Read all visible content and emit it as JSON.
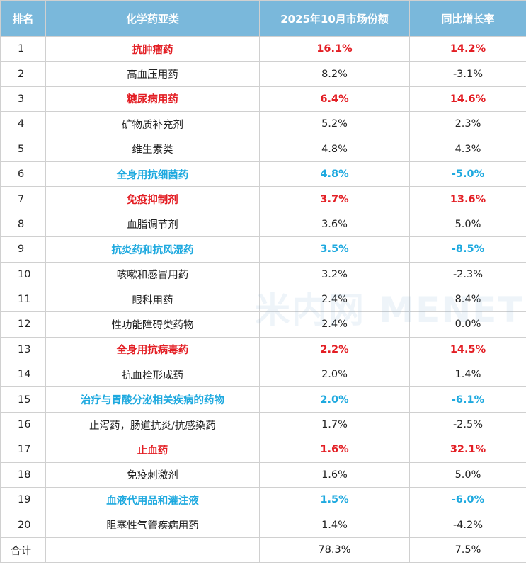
{
  "headers": [
    "排名",
    "化学药亚类",
    "2025年10月市场份额",
    "同比增长率"
  ],
  "rows": [
    {
      "rank": "1",
      "name": "抗肿瘤药",
      "share": "16.1%",
      "growth": "14.2%",
      "highlight": "red"
    },
    {
      "rank": "2",
      "name": "高血压用药",
      "share": "8.2%",
      "growth": "-3.1%",
      "highlight": "none"
    },
    {
      "rank": "3",
      "name": "糖尿病用药",
      "share": "6.4%",
      "growth": "14.6%",
      "highlight": "red"
    },
    {
      "rank": "4",
      "name": "矿物质补充剂",
      "share": "5.2%",
      "growth": "2.3%",
      "highlight": "none"
    },
    {
      "rank": "5",
      "name": "维生素类",
      "share": "4.8%",
      "growth": "4.3%",
      "highlight": "none"
    },
    {
      "rank": "6",
      "name": "全身用抗细菌药",
      "share": "4.8%",
      "growth": "-5.0%",
      "highlight": "blue"
    },
    {
      "rank": "7",
      "name": "免疫抑制剂",
      "share": "3.7%",
      "growth": "13.6%",
      "highlight": "red"
    },
    {
      "rank": "8",
      "name": "血脂调节剂",
      "share": "3.6%",
      "growth": "5.0%",
      "highlight": "none"
    },
    {
      "rank": "9",
      "name": "抗炎药和抗风湿药",
      "share": "3.5%",
      "growth": "-8.5%",
      "highlight": "blue"
    },
    {
      "rank": "10",
      "name": "咳嗽和感冒用药",
      "share": "3.2%",
      "growth": "-2.3%",
      "highlight": "none"
    },
    {
      "rank": "11",
      "name": "眼科用药",
      "share": "2.4%",
      "growth": "8.4%",
      "highlight": "none"
    },
    {
      "rank": "12",
      "name": "性功能障碍类药物",
      "share": "2.4%",
      "growth": "0.0%",
      "highlight": "none"
    },
    {
      "rank": "13",
      "name": "全身用抗病毒药",
      "share": "2.2%",
      "growth": "14.5%",
      "highlight": "red"
    },
    {
      "rank": "14",
      "name": "抗血栓形成药",
      "share": "2.0%",
      "growth": "1.4%",
      "highlight": "none"
    },
    {
      "rank": "15",
      "name": "治疗与胃酸分泌相关疾病的药物",
      "share": "2.0%",
      "growth": "-6.1%",
      "highlight": "blue"
    },
    {
      "rank": "16",
      "name": "止泻药，肠道抗炎/抗感染药",
      "share": "1.7%",
      "growth": "-2.5%",
      "highlight": "none"
    },
    {
      "rank": "17",
      "name": "止血药",
      "share": "1.6%",
      "growth": "32.1%",
      "highlight": "red"
    },
    {
      "rank": "18",
      "name": "免疫刺激剂",
      "share": "1.6%",
      "growth": "5.0%",
      "highlight": "none"
    },
    {
      "rank": "19",
      "name": "血液代用品和灌注液",
      "share": "1.5%",
      "growth": "-6.0%",
      "highlight": "blue"
    },
    {
      "rank": "20",
      "name": "阻塞性气管疾病用药",
      "share": "1.4%",
      "growth": "-4.2%",
      "highlight": "none"
    }
  ],
  "total": {
    "label": "合计",
    "name": "",
    "share": "78.3%",
    "growth": "7.5%"
  },
  "watermark": "米内网 MENET",
  "colors": {
    "header_bg": "#7ab8db",
    "red": "#e31e24",
    "blue": "#1ea9df"
  }
}
